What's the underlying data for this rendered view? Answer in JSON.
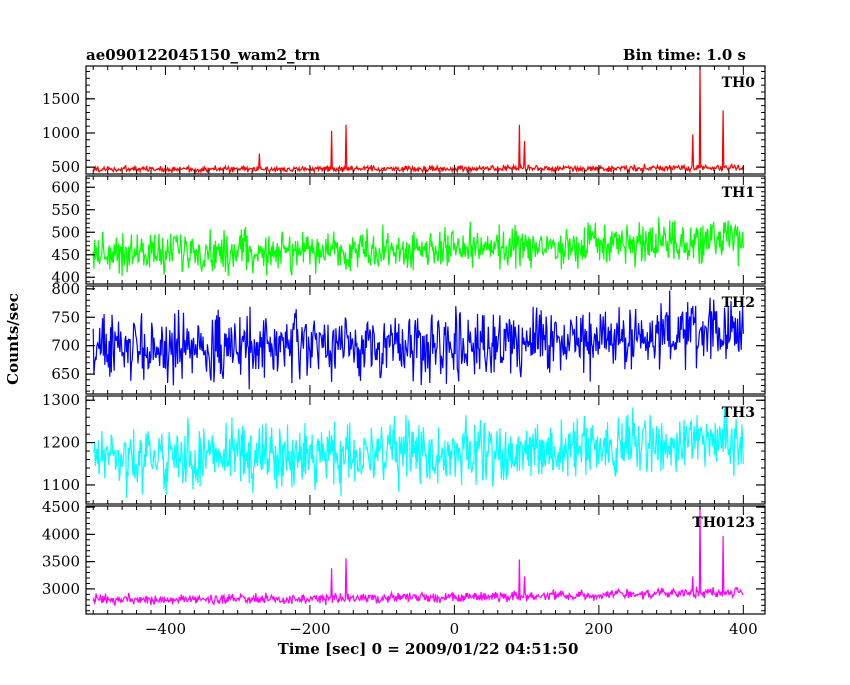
{
  "header": {
    "title": "ae090122045150_wam2_trn",
    "bin_time": "Bin time: 1.0 s"
  },
  "chart_data": {
    "type": "line",
    "xlabel": "Time [sec] 0 = 2009/01/22 04:51:50",
    "ylabel": "Counts/sec",
    "xlim": [
      -510,
      430
    ],
    "x_ticks": [
      -400,
      -200,
      0,
      200,
      400
    ],
    "x_tick_labels": [
      "−400",
      "−200",
      "0",
      "200",
      "400"
    ],
    "x_range_data": [
      -500,
      400
    ],
    "grid": false,
    "panels": [
      {
        "name": "TH0",
        "color": "#ff0000",
        "ylim": [
          400,
          1980
        ],
        "y_ticks": [
          500,
          1000,
          1500
        ],
        "y_tick_labels": [
          "500",
          "1000",
          "1500"
        ],
        "y_minor": 100,
        "baseline": 470,
        "noise": 22,
        "trend": 20,
        "spikes": [
          {
            "t": -270,
            "v": 700
          },
          {
            "t": -170,
            "v": 1030
          },
          {
            "t": -150,
            "v": 1120
          },
          {
            "t": 90,
            "v": 1120
          },
          {
            "t": 97,
            "v": 880
          },
          {
            "t": 330,
            "v": 980
          },
          {
            "t": 340,
            "v": 1980
          },
          {
            "t": 372,
            "v": 1330
          }
        ]
      },
      {
        "name": "TH1",
        "color": "#00ff00",
        "ylim": [
          385,
          625
        ],
        "y_ticks": [
          400,
          450,
          500,
          550,
          600
        ],
        "y_tick_labels": [
          "400",
          "450",
          "500",
          "550",
          "600"
        ],
        "y_minor": 10,
        "baseline": 455,
        "noise": 22,
        "trend": 25,
        "spikes": []
      },
      {
        "name": "TH2",
        "color": "#0000ff",
        "ylim": [
          615,
          805
        ],
        "y_ticks": [
          650,
          700,
          750,
          800
        ],
        "y_tick_labels": [
          "650",
          "700",
          "750",
          "800"
        ],
        "y_minor": 10,
        "baseline": 695,
        "noise": 28,
        "trend": 30,
        "spikes": []
      },
      {
        "name": "TH3",
        "color": "#00ffff",
        "ylim": [
          1055,
          1310
        ],
        "y_ticks": [
          1100,
          1200,
          1300
        ],
        "y_tick_labels": [
          "1100",
          "1200",
          "1300"
        ],
        "y_minor": 20,
        "baseline": 1165,
        "noise": 35,
        "trend": 40,
        "spikes": []
      },
      {
        "name": "TH0123",
        "color": "#ff00ff",
        "ylim": [
          2540,
          4520
        ],
        "y_ticks": [
          3000,
          3500,
          4000,
          4500
        ],
        "y_tick_labels": [
          "3000",
          "3500",
          "4000",
          "4500"
        ],
        "y_minor": 100,
        "baseline": 2800,
        "noise": 45,
        "trend": 150,
        "spikes": [
          {
            "t": -170,
            "v": 3380
          },
          {
            "t": -150,
            "v": 3560
          },
          {
            "t": 90,
            "v": 3540
          },
          {
            "t": 97,
            "v": 3230
          },
          {
            "t": 330,
            "v": 3230
          },
          {
            "t": 340,
            "v": 4520
          },
          {
            "t": 372,
            "v": 3970
          }
        ]
      }
    ]
  }
}
